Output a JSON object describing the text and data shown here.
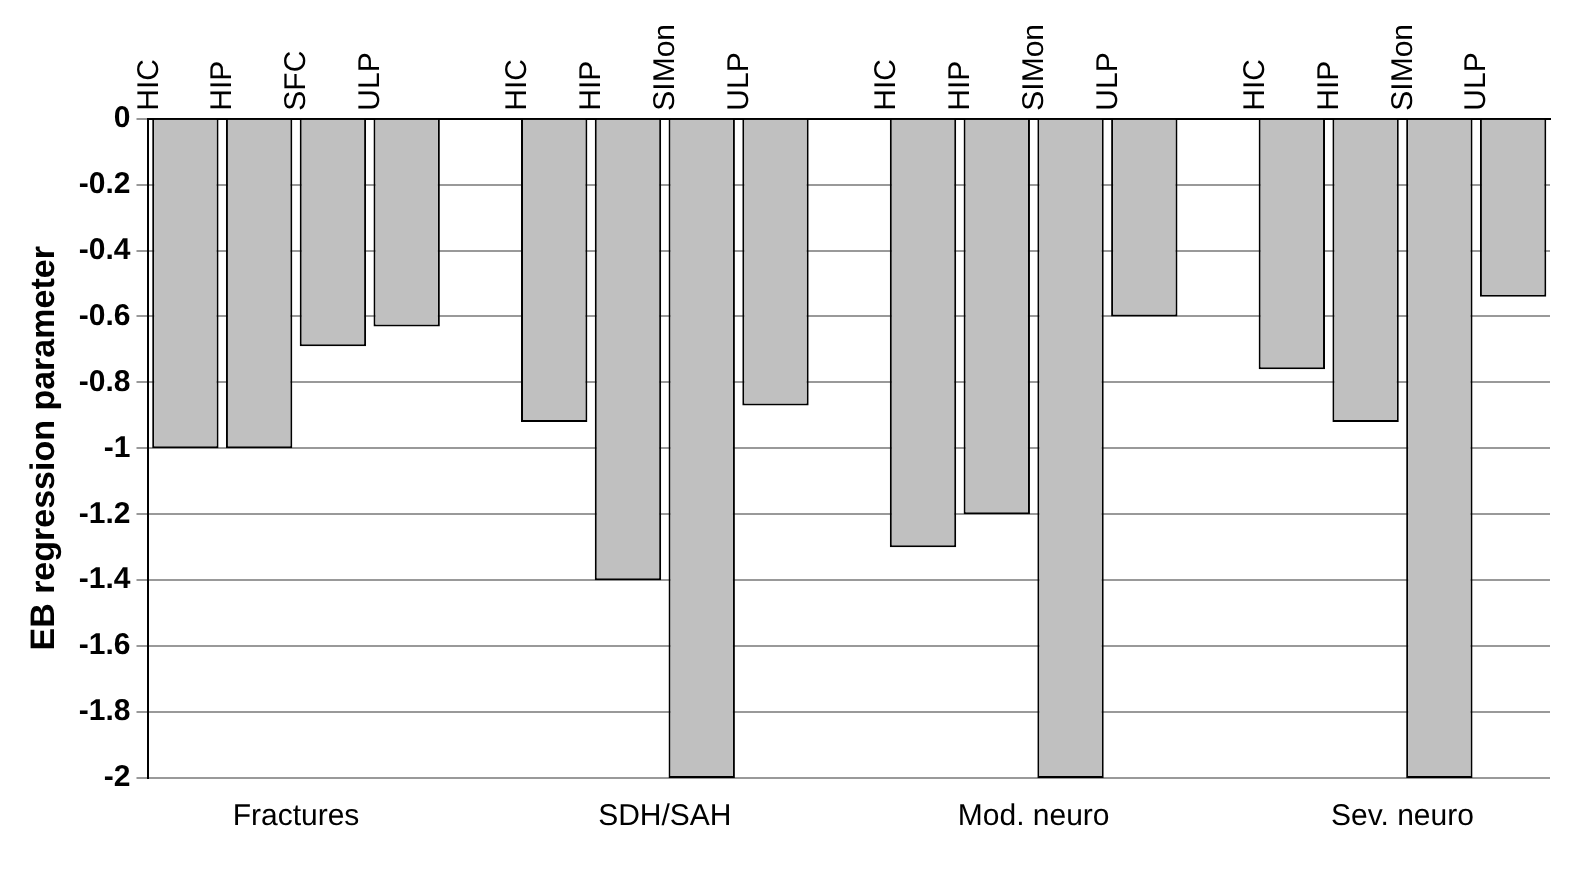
{
  "chart_data": {
    "type": "bar",
    "ylabel": "EB regression parameter",
    "categories": [
      "HIC",
      "HIP",
      "SFC",
      "ULP",
      null,
      "HIC",
      "HIP",
      "SIMon",
      "ULP",
      null,
      "HIC",
      "HIP",
      "SIMon",
      "ULP",
      null,
      "HIC",
      "HIP",
      "SIMon",
      "ULP"
    ],
    "values": [
      -1,
      -1,
      -0.69,
      -0.63,
      null,
      -0.92,
      -1.4,
      -2,
      -0.87,
      null,
      -1.3,
      -1.2,
      -2,
      -0.6,
      null,
      -0.76,
      -0.92,
      -2,
      -0.54
    ],
    "color": "#c0c0c0",
    "ylim": [
      -2,
      0
    ],
    "yticks": [
      0,
      -0.2,
      -0.4,
      -0.6,
      -0.8,
      -1,
      -1.2,
      -1.4,
      -1.6,
      -1.8,
      -2
    ],
    "grid": "y",
    "legend": false,
    "annotations": [
      "Fractures",
      "SDH/SAH",
      "Mod. neuro",
      "Sev. neuro"
    ]
  }
}
